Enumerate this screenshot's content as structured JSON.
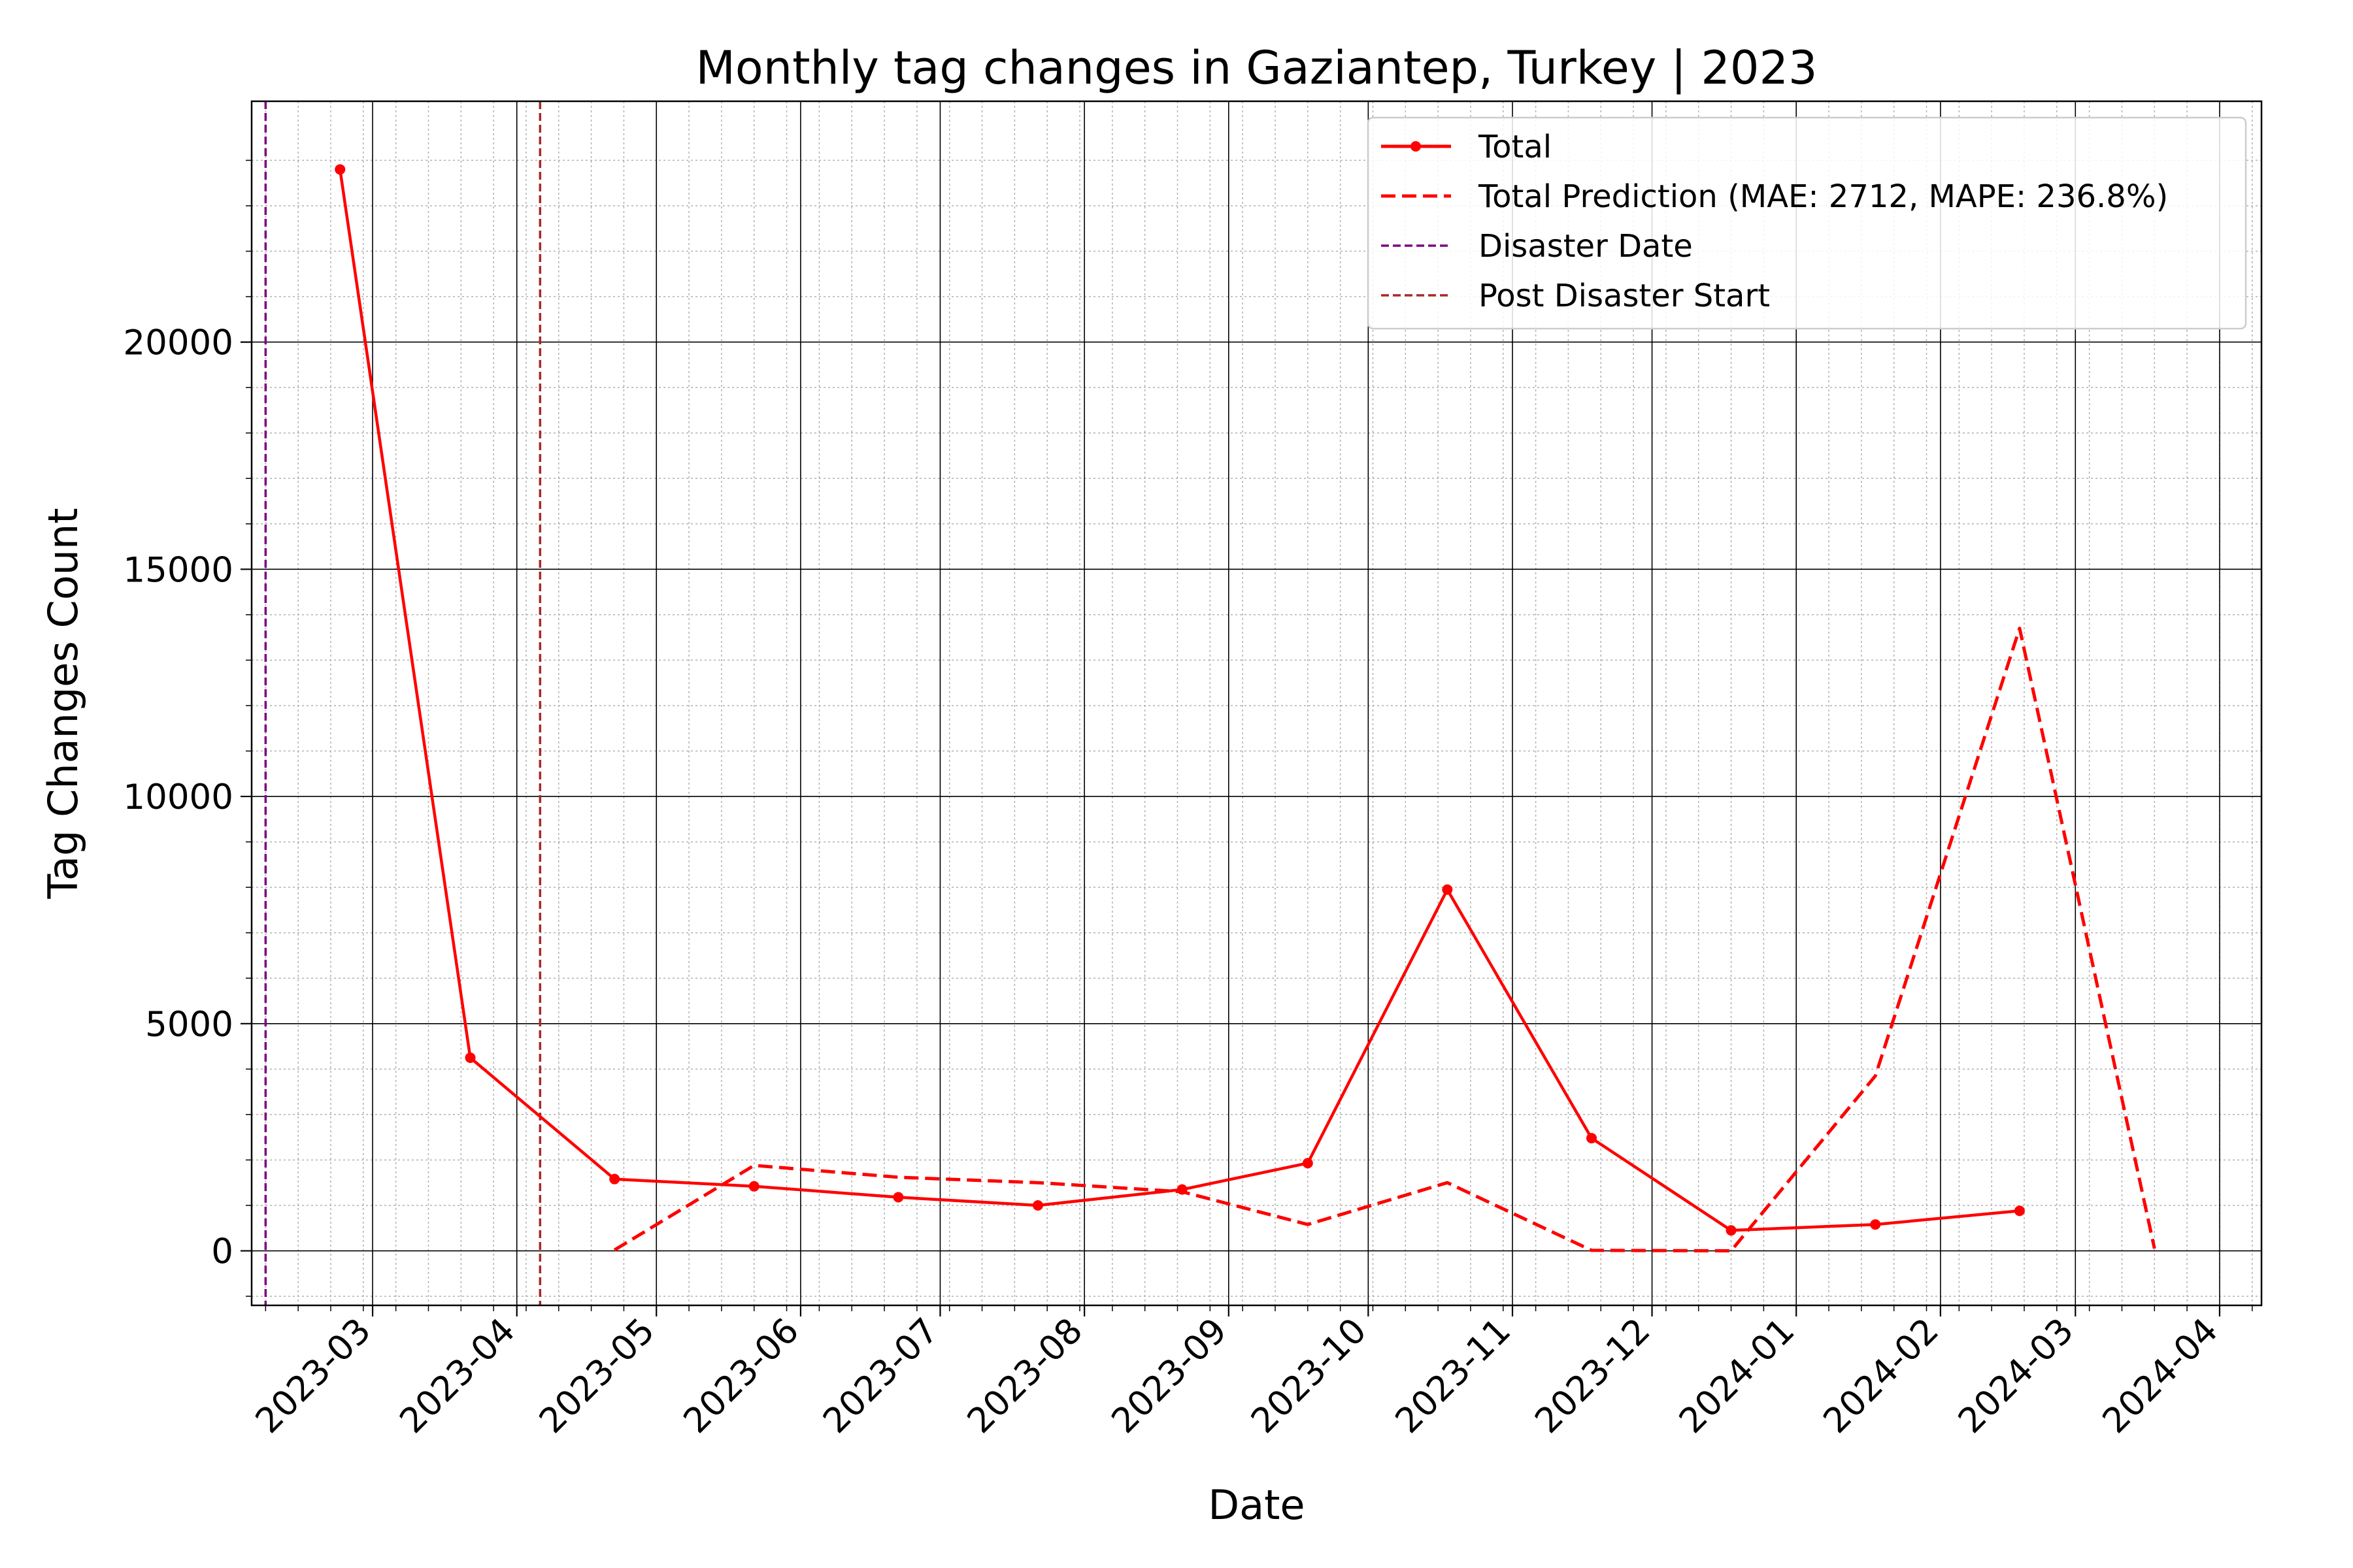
{
  "chart_data": {
    "type": "line",
    "title": "Monthly tag changes in Gaziantep, Turkey | 2023",
    "xlabel": "Date",
    "ylabel": "Tag Changes Count",
    "xlim": [
      "2023-02-03",
      "2024-04-10"
    ],
    "ylim": [
      -1200,
      25300
    ],
    "x_ticks": [
      "2023-03",
      "2023-04",
      "2023-05",
      "2023-06",
      "2023-07",
      "2023-08",
      "2023-09",
      "2023-10",
      "2023-11",
      "2023-12",
      "2024-01",
      "2024-02",
      "2024-03",
      "2024-04"
    ],
    "x_tick_dates": [
      "2023-03-01",
      "2023-04-01",
      "2023-05-01",
      "2023-06-01",
      "2023-07-01",
      "2023-08-01",
      "2023-09-01",
      "2023-10-01",
      "2023-11-01",
      "2023-12-01",
      "2024-01-01",
      "2024-02-01",
      "2024-03-01",
      "2024-04-01"
    ],
    "y_ticks": [
      0,
      5000,
      10000,
      15000,
      20000
    ],
    "grid": {
      "major": true,
      "minor": true
    },
    "legend_position": "top-right",
    "series": [
      {
        "name": "Total",
        "color": "#ff0000",
        "style": "solid",
        "markers": true,
        "points": [
          {
            "x": "2023-02-22",
            "y": 23800
          },
          {
            "x": "2023-03-22",
            "y": 4250
          },
          {
            "x": "2023-04-22",
            "y": 1580
          },
          {
            "x": "2023-05-22",
            "y": 1420
          },
          {
            "x": "2023-06-22",
            "y": 1180
          },
          {
            "x": "2023-07-22",
            "y": 1000
          },
          {
            "x": "2023-08-22",
            "y": 1350
          },
          {
            "x": "2023-09-18",
            "y": 1930
          },
          {
            "x": "2023-10-18",
            "y": 7950
          },
          {
            "x": "2023-11-18",
            "y": 2480
          },
          {
            "x": "2023-12-18",
            "y": 450
          },
          {
            "x": "2024-01-18",
            "y": 580
          },
          {
            "x": "2024-02-18",
            "y": 880
          }
        ]
      },
      {
        "name": "Total Prediction (MAE: 2712, MAPE: 236.8%)",
        "color": "#ff0000",
        "style": "dashed",
        "markers": false,
        "points": [
          {
            "x": "2023-04-22",
            "y": 20
          },
          {
            "x": "2023-05-22",
            "y": 1880
          },
          {
            "x": "2023-06-22",
            "y": 1620
          },
          {
            "x": "2023-07-22",
            "y": 1500
          },
          {
            "x": "2023-08-22",
            "y": 1300
          },
          {
            "x": "2023-09-18",
            "y": 580
          },
          {
            "x": "2023-10-18",
            "y": 1500
          },
          {
            "x": "2023-11-18",
            "y": 10
          },
          {
            "x": "2023-12-18",
            "y": 0
          },
          {
            "x": "2024-01-18",
            "y": 3850
          },
          {
            "x": "2024-02-18",
            "y": 13700
          },
          {
            "x": "2024-03-18",
            "y": 50
          }
        ]
      }
    ],
    "vlines": [
      {
        "name": "Disaster Date",
        "x": "2023-02-06",
        "color": "#800080",
        "style": "dashed"
      },
      {
        "name": "Post Disaster Start",
        "x": "2023-04-06",
        "color": "#a52a2a",
        "style": "dashed"
      }
    ]
  }
}
